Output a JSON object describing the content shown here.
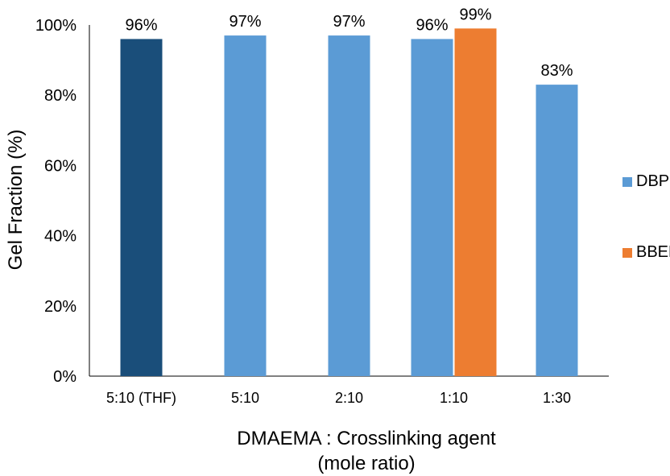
{
  "chart_data": {
    "type": "bar",
    "categories": [
      "5:10 (THF)",
      "5:10",
      "2:10",
      "1:10",
      "1:30"
    ],
    "series": [
      {
        "name": "DBPO",
        "values": [
          96,
          97,
          97,
          96,
          83
        ],
        "color": "#5b9bd5",
        "first_bar_color": "#1a4e7a"
      },
      {
        "name": "BBEE",
        "values": [
          null,
          null,
          null,
          99,
          null
        ],
        "color": "#ed7d31"
      }
    ],
    "data_labels": {
      "DBPO": [
        "96%",
        "97%",
        "97%",
        "96%",
        "83%"
      ],
      "BBEE": [
        "",
        "",
        "",
        "99%",
        ""
      ]
    },
    "ylabel": "Gel Fraction (%)",
    "xlabel_lines": [
      "DMAEMA : Crosslinking agent",
      "(mole ratio)"
    ],
    "yticks": [
      "0%",
      "20%",
      "40%",
      "60%",
      "80%",
      "100%"
    ],
    "ylim": [
      0,
      100
    ],
    "grid": false,
    "legend_position": "right"
  }
}
